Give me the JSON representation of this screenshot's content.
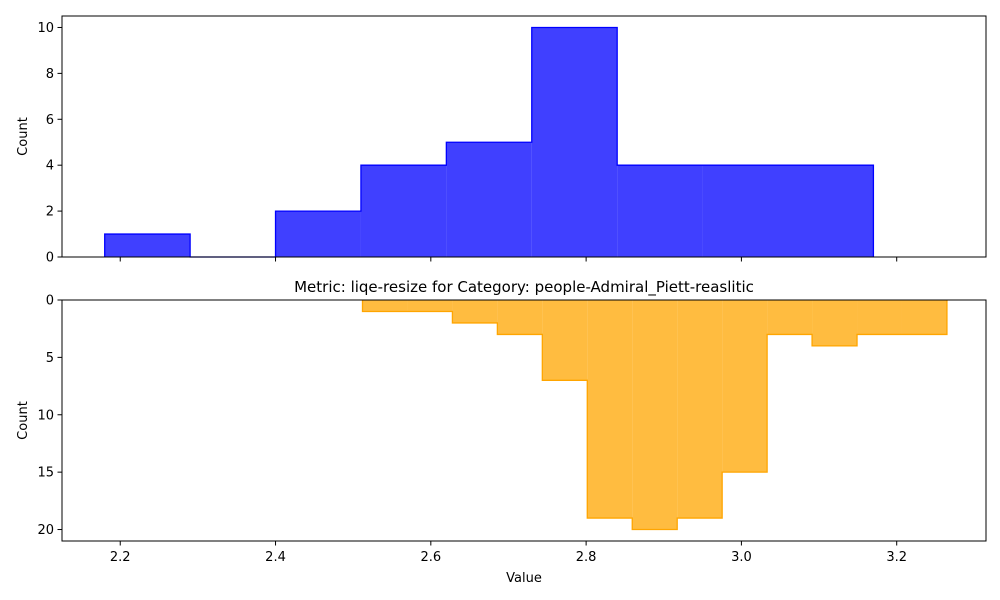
{
  "chart_data": [
    {
      "type": "histogram",
      "title": "",
      "xlabel": "",
      "ylabel": "Count",
      "xlim": [
        2.125,
        3.315
      ],
      "ylim": [
        0,
        10.5
      ],
      "y_inverted": false,
      "xticks": [
        2.2,
        2.4,
        2.6,
        2.8,
        3.0,
        3.2
      ],
      "xticks_labeled": false,
      "yticks": [
        0,
        2,
        4,
        6,
        8,
        10
      ],
      "color": "#0000ff",
      "fill_opacity": 0.75,
      "bin_edges": [
        2.18,
        2.29,
        2.4,
        2.51,
        2.62,
        2.73,
        2.84,
        2.95,
        3.06,
        3.17
      ],
      "counts": [
        1,
        0,
        2,
        4,
        5,
        10,
        4,
        4,
        4
      ]
    },
    {
      "type": "histogram",
      "title": "Metric: liqe-resize for Category: people-Admiral_Piett-reaslitic",
      "xlabel": "Value",
      "ylabel": "Count",
      "xlim": [
        2.125,
        3.315
      ],
      "ylim": [
        0,
        21
      ],
      "y_inverted": true,
      "xticks": [
        2.2,
        2.4,
        2.6,
        2.8,
        3.0,
        3.2
      ],
      "xticks_labeled": true,
      "yticks": [
        0,
        5,
        10,
        15,
        20
      ],
      "color": "#ffa500",
      "fill_opacity": 0.75,
      "bin_edges": [
        2.512,
        2.5699,
        2.6278,
        2.6857,
        2.7436,
        2.8015,
        2.8594,
        2.9173,
        2.9752,
        3.0331,
        3.091,
        3.1489,
        3.2068,
        3.2647
      ],
      "counts": [
        1,
        1,
        2,
        3,
        7,
        19,
        20,
        19,
        15,
        3,
        4,
        3,
        3
      ]
    }
  ]
}
